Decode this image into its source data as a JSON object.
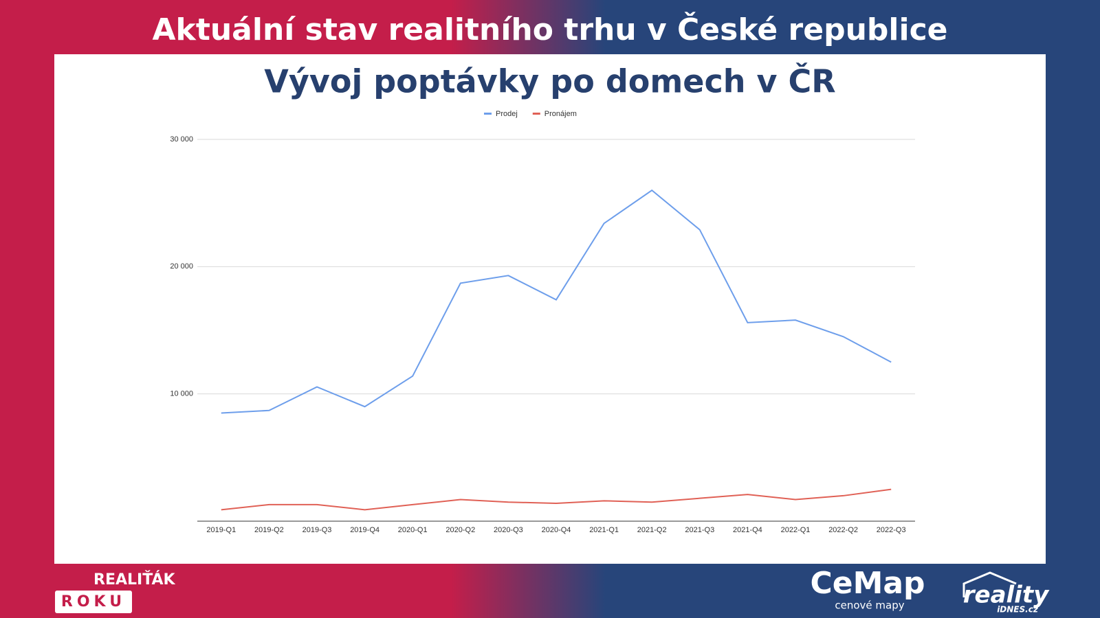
{
  "header": {
    "title": "Aktuální stav realitního trhu v České republice"
  },
  "chart_data": {
    "type": "line",
    "title": "Vývoj poptávky po domech v ČR",
    "categories": [
      "2019-Q1",
      "2019-Q2",
      "2019-Q3",
      "2019-Q4",
      "2020-Q1",
      "2020-Q2",
      "2020-Q3",
      "2020-Q4",
      "2021-Q1",
      "2021-Q2",
      "2021-Q3",
      "2021-Q4",
      "2022-Q1",
      "2022-Q2",
      "2022-Q3"
    ],
    "series": [
      {
        "name": "Prodej",
        "color": "#6d9eeb",
        "values": [
          8500,
          8700,
          10550,
          9000,
          11400,
          18700,
          19300,
          17400,
          23400,
          26000,
          22900,
          15600,
          15800,
          14500,
          12500
        ]
      },
      {
        "name": "Pronájem",
        "color": "#e06055",
        "values": [
          900,
          1300,
          1300,
          900,
          1300,
          1700,
          1500,
          1400,
          1600,
          1500,
          1800,
          2100,
          1700,
          2000,
          2500
        ]
      }
    ],
    "ylim": [
      0,
      30000
    ],
    "yticks": [
      {
        "value": 10000,
        "label": "10 000"
      },
      {
        "value": 20000,
        "label": "20 000"
      },
      {
        "value": 30000,
        "label": "30 000"
      }
    ],
    "grid": true,
    "legend": "top"
  },
  "footer": {
    "award_top": "REALIŤÁK",
    "award_bottom": "ROKU",
    "cemap": "CeMap",
    "cemap_sub": "cenové mapy",
    "reality": "reality",
    "reality_sub": "iDNES.cz"
  }
}
